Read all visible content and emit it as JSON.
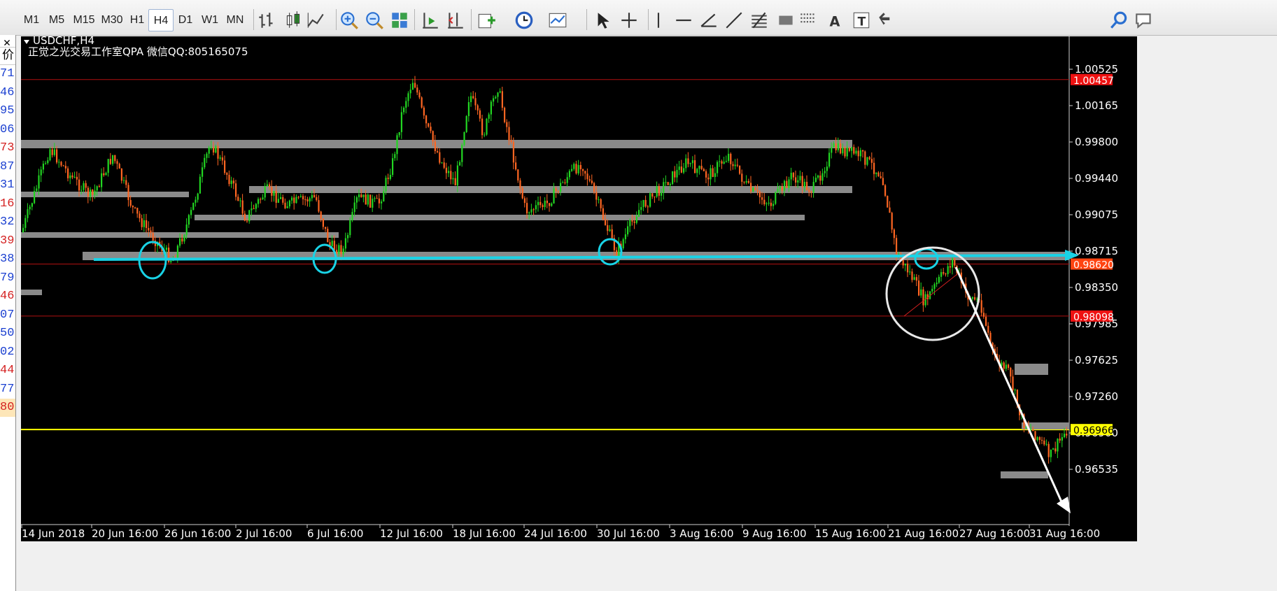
{
  "toolbar": {
    "timeframes": [
      "M1",
      "M5",
      "M15",
      "M30",
      "H1",
      "H4",
      "D1",
      "W1",
      "MN"
    ],
    "active_timeframe": "H4",
    "icons": [
      "bar-chart-icon",
      "candlestick-icon",
      "line-chart-icon",
      "zoom-in-icon",
      "zoom-out-icon",
      "tile-windows-icon",
      "auto-scroll-icon",
      "chart-shift-icon",
      "new-chart-icon",
      "periods-clock-icon",
      "templates-icon",
      "cursor-icon",
      "crosshair-icon",
      "vertical-line-icon",
      "horizontal-line-icon",
      "trendline-angle-icon",
      "trendline-icon",
      "fibonacci-icon",
      "rectangle-icon",
      "fibo-fan-icon",
      "text-icon",
      "text-label-icon",
      "arrows-icon",
      "search-icon",
      "chat-icon"
    ]
  },
  "left_panel": {
    "close_glyph": "✕",
    "header": "价",
    "items": [
      {
        "text": "71",
        "color": "#1a3fd0"
      },
      {
        "text": "46",
        "color": "#1a3fd0"
      },
      {
        "text": "95",
        "color": "#1a3fd0"
      },
      {
        "text": "06",
        "color": "#1a3fd0"
      },
      {
        "text": "73",
        "color": "#d42020"
      },
      {
        "text": "87",
        "color": "#1a3fd0"
      },
      {
        "text": "31",
        "color": "#1a3fd0"
      },
      {
        "text": "16",
        "color": "#d42020"
      },
      {
        "text": "32",
        "color": "#1a3fd0"
      },
      {
        "text": "39",
        "color": "#d42020"
      },
      {
        "text": "38",
        "color": "#1a3fd0"
      },
      {
        "text": "79",
        "color": "#1a3fd0"
      },
      {
        "text": "46",
        "color": "#d42020"
      },
      {
        "text": "07",
        "color": "#1a3fd0"
      },
      {
        "text": "50",
        "color": "#1a3fd0"
      },
      {
        "text": "02",
        "color": "#1a3fd0"
      },
      {
        "text": "44",
        "color": "#d42020"
      },
      {
        "text": "77",
        "color": "#1a3fd0"
      },
      {
        "text": "80",
        "color": "#d42020",
        "highlight": "#fde6b8"
      }
    ]
  },
  "chart": {
    "symbol_label": "USDCHF,H4",
    "subtitle": "正觉之光交易工作室QPA 微信QQ:805165075",
    "colors": {
      "background": "#000000",
      "bull": "#22d622",
      "bear": "#ff6622",
      "zone": "#8a8a8a",
      "cyan": "#19d3e6",
      "white": "#ffffff",
      "red_line": "#b01010",
      "yellow_line": "#ffff00"
    },
    "x_labels": [
      "14 Jun 2018",
      "20 Jun 16:00",
      "26 Jun 16:00",
      "2 Jul 16:00",
      "6 Jul 16:00",
      "12 Jul 16:00",
      "18 Jul 16:00",
      "24 Jul 16:00",
      "30 Jul 16:00",
      "3 Aug 16:00",
      "9 Aug 16:00",
      "15 Aug 16:00",
      "21 Aug 16:00",
      "27 Aug 16:00",
      "31 Aug 16:00"
    ],
    "y_labels": [
      "1.00525",
      "1.00165",
      "0.99800",
      "0.99440",
      "0.99075",
      "0.98715",
      "0.98350",
      "0.97985",
      "0.97625",
      "0.97260",
      "0.96900",
      "0.96535"
    ],
    "price_tags": [
      {
        "text": "1.00457",
        "bg": "#ee1111",
        "fg": "#ffffff"
      },
      {
        "text": "0.98620",
        "bg": "#ff4411",
        "fg": "#ffffff"
      },
      {
        "text": "0.98098",
        "bg": "#ee1111",
        "fg": "#ffffff"
      },
      {
        "text": "0.96966",
        "bg": "#ffff00",
        "fg": "#000000"
      }
    ]
  }
}
